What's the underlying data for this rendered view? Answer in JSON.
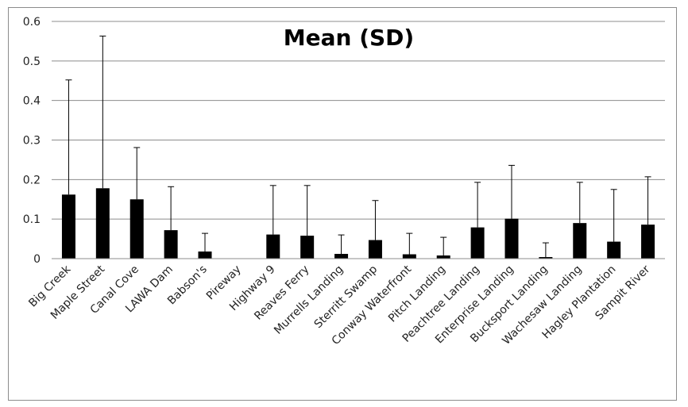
{
  "chart_data": {
    "type": "bar",
    "title": "Mean (SD)",
    "xlabel": "",
    "ylabel": "",
    "ylim": [
      0,
      0.6
    ],
    "yticks": [
      0,
      0.1,
      0.2,
      0.3,
      0.4,
      0.5,
      0.6
    ],
    "ytick_labels": [
      "0",
      "0.1",
      "0.2",
      "0.3",
      "0.4",
      "0.5",
      "0.6"
    ],
    "grid": true,
    "legend": "none",
    "bar_color": "#000000",
    "grid_color": "#8c8c8c",
    "categories": [
      "Big Creek",
      "Maple Street",
      "Canal Cove",
      "LAWA Dam",
      "Babson's",
      "Pireway",
      "Highway 9",
      "Reaves Ferry",
      "Murrells Landing",
      "Sterritt Swamp",
      "Conway Waterfront",
      "Pitch Landing",
      "Peachtree Landing",
      "Enterprise Landing",
      "Bucksport Landing",
      "Wachesaw Landing",
      "Hagley Plantation",
      "Sampit River"
    ],
    "series": [
      {
        "values": [
          0.162,
          0.178,
          0.15,
          0.072,
          0.018,
          0.0,
          0.061,
          0.058,
          0.012,
          0.047,
          0.011,
          0.008,
          0.079,
          0.101,
          0.004,
          0.09,
          0.043,
          0.086
        ],
        "sd_upper": [
          0.452,
          0.563,
          0.281,
          0.182,
          0.064,
          0.0,
          0.185,
          0.185,
          0.06,
          0.147,
          0.064,
          0.054,
          0.193,
          0.236,
          0.04,
          0.193,
          0.175,
          0.207
        ]
      }
    ]
  }
}
